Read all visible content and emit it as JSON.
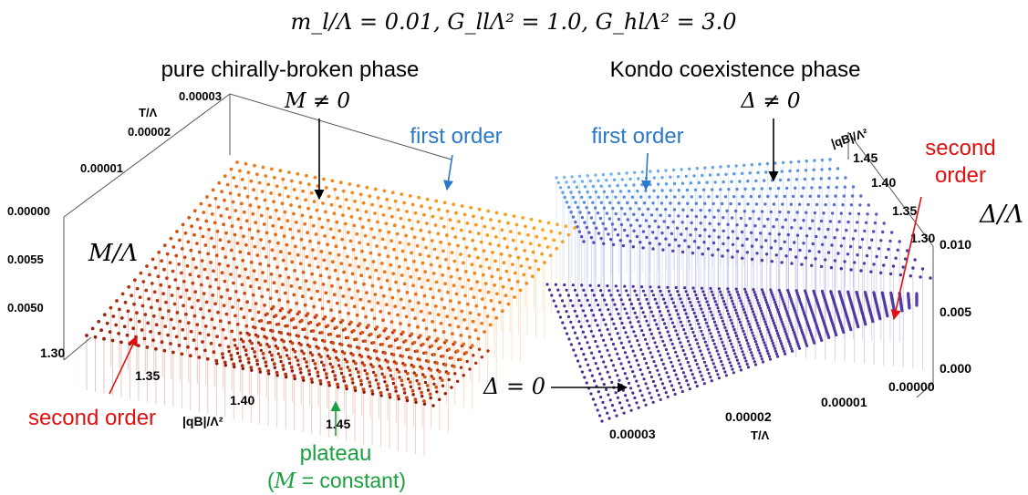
{
  "figure": {
    "header": "m_l/Λ = 0.01, G_llΛ² = 1.0, G_hlΛ² = 3.0"
  },
  "chart_data": [
    {
      "type": "scatter",
      "subtype": "3d-point-surface",
      "title": "pure chirally-broken phase",
      "subtitle": "M ≠ 0",
      "zlabel": "M/Λ",
      "xlabel": "|qB|/Λ²",
      "ylabel": "T/Λ",
      "x_ticks": [
        "1.30",
        "1.35",
        "1.40",
        "1.45"
      ],
      "y_ticks": [
        "0.00000",
        "0.00001",
        "0.00002",
        "0.00003"
      ],
      "z_ticks": [
        "0.0050",
        "0.0055"
      ],
      "xlim": [
        1.3,
        1.48
      ],
      "ylim": [
        0.0,
        3e-05
      ],
      "zlim": [
        0.0047,
        0.0059
      ],
      "colormap": [
        "#7a1005",
        "#c23a10",
        "#f07a1a",
        "#ffb020"
      ],
      "annotations": {
        "first_order": {
          "text": "first order",
          "color": "#2a78c8"
        },
        "second_order": {
          "text": "second order",
          "color": "#e01010"
        },
        "plateau": {
          "text": "plateau",
          "sub_pre": "(",
          "sub_var": "M",
          "sub_post": " = constant)",
          "color": "#1aa040"
        }
      }
    },
    {
      "type": "scatter",
      "subtype": "3d-point-surface",
      "title": "Kondo coexistence phase",
      "subtitle": "Δ ≠ 0",
      "zlabel": "Δ/Λ",
      "xlabel": "T/Λ",
      "ylabel": "|qB|/Λ²",
      "x_ticks": [
        "0.00000",
        "0.00001",
        "0.00002",
        "0.00003"
      ],
      "y_ticks": [
        "1.30",
        "1.35",
        "1.40",
        "1.45"
      ],
      "z_ticks": [
        "0.000",
        "0.005",
        "0.010"
      ],
      "xlim": [
        0.0,
        3e-05
      ],
      "ylim": [
        1.3,
        1.48
      ],
      "zlim": [
        0.0,
        0.011
      ],
      "colormap": [
        "#4a2890",
        "#5a50c0",
        "#5a9ae0",
        "#9ad0f8"
      ],
      "annotations": {
        "first_order": {
          "text": "first order",
          "color": "#2a78c8"
        },
        "second_order": {
          "text": "second\norder",
          "color": "#e01010"
        },
        "zero": {
          "text": "Δ = 0",
          "color": "#000000"
        }
      }
    }
  ]
}
